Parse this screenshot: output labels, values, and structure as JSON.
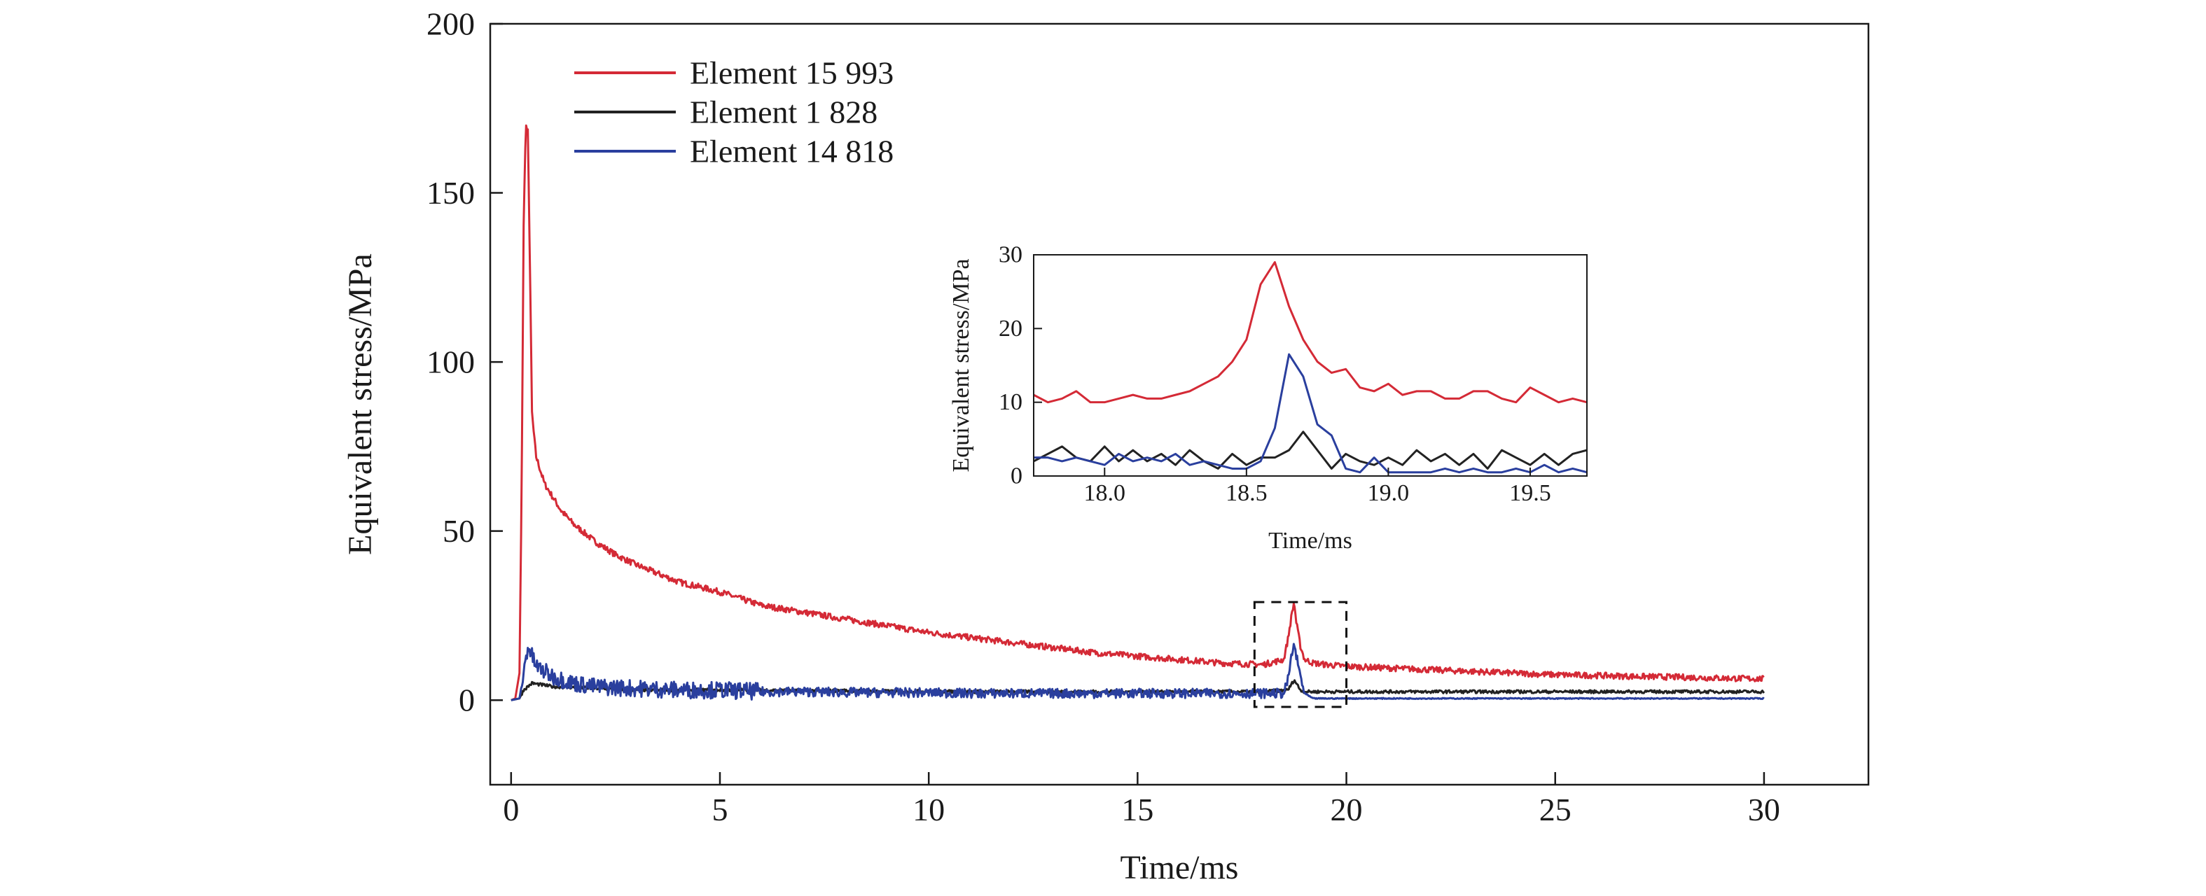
{
  "chart_data": [
    {
      "type": "line",
      "xlabel": "Time/ms",
      "ylabel": "Equivalent stress/MPa",
      "xlim": [
        -0.5,
        32.5
      ],
      "ylim": [
        -25,
        200
      ],
      "xticks": [
        0,
        5,
        10,
        15,
        20,
        25,
        30
      ],
      "yticks": [
        0,
        50,
        100,
        150,
        200
      ],
      "xtick_labels": [
        "0",
        "5",
        "10",
        "15",
        "20",
        "25",
        "30"
      ],
      "ytick_labels": [
        "0",
        "50",
        "100",
        "150",
        "200"
      ],
      "grid": false,
      "legend_position": "top-left",
      "annotation": "dashed box around 17.8–20.0 ms, −2 to 29 MPa",
      "series": [
        {
          "name": "Element 15 993",
          "color": "#d42a36",
          "x": [
            0,
            0.1,
            0.2,
            0.25,
            0.3,
            0.35,
            0.4,
            0.45,
            0.5,
            0.55,
            0.6,
            0.7,
            0.8,
            1.0,
            1.2,
            1.5,
            2.0,
            2.5,
            3.0,
            3.5,
            4.0,
            5.0,
            6.0,
            7.0,
            8.0,
            9.0,
            10.0,
            11.0,
            12.0,
            13.0,
            14.0,
            15.0,
            16.0,
            17.0,
            18.0,
            18.5,
            18.6,
            18.7,
            18.75,
            18.8,
            18.9,
            19.0,
            19.2,
            19.5,
            20.0,
            21.0,
            22.0,
            23.0,
            24.0,
            25.0,
            26.0,
            27.0,
            28.0,
            29.0,
            30.0
          ],
          "values": [
            0,
            0.5,
            8,
            60,
            140,
            170,
            168,
            130,
            85,
            78,
            72,
            68,
            64,
            60,
            56,
            52,
            47,
            43,
            40,
            37.5,
            35,
            32,
            28,
            26,
            24,
            22,
            20,
            18.5,
            17,
            15.5,
            14,
            13,
            12,
            11,
            10.5,
            12,
            18,
            26,
            29,
            23,
            16,
            12,
            11,
            10.5,
            10,
            9.5,
            9,
            8.5,
            8,
            7.5,
            7.3,
            7,
            6.8,
            6.5,
            6.3
          ]
        },
        {
          "name": "Element 1 828",
          "color": "#222222",
          "x": [
            0,
            0.2,
            0.3,
            0.5,
            1.0,
            2.0,
            3.0,
            4.0,
            5.0,
            6.0,
            7.0,
            8.0,
            9.0,
            10.0,
            11.0,
            12.0,
            13.0,
            14.0,
            15.0,
            16.0,
            17.0,
            18.0,
            18.6,
            18.75,
            18.9,
            19.0,
            20.0,
            21.0,
            22.0,
            23.0,
            24.0,
            25.0,
            26.0,
            27.0,
            28.0,
            29.0,
            30.0
          ],
          "values": [
            0,
            0.5,
            3,
            5,
            4,
            3.5,
            3,
            3,
            3,
            3,
            2.8,
            2.8,
            2.6,
            2.6,
            2.5,
            2.5,
            2.5,
            2.5,
            2.5,
            2.5,
            2.5,
            2.5,
            3,
            6,
            3,
            2.5,
            2.5,
            2.5,
            2.5,
            2.5,
            2.5,
            2.5,
            2.5,
            2.5,
            2.5,
            2.5,
            2.5
          ]
        },
        {
          "name": "Element 14 818",
          "color": "#2a3f9e",
          "x": [
            0,
            0.2,
            0.3,
            0.4,
            0.6,
            1.0,
            1.5,
            2.0,
            3.0,
            4.0,
            5.0,
            6.0,
            7.0,
            8.0,
            9.0,
            10.0,
            11.0,
            12.0,
            13.0,
            14.0,
            15.0,
            16.0,
            17.0,
            18.0,
            18.5,
            18.6,
            18.7,
            18.75,
            18.8,
            18.9,
            19.0,
            19.2,
            20.0,
            21.0,
            22.0,
            23.0,
            24.0,
            25.0,
            26.0,
            27.0,
            28.0,
            29.0,
            30.0
          ],
          "values": [
            0,
            0.5,
            8,
            16,
            10,
            7,
            5,
            4,
            3.5,
            3,
            3,
            2.5,
            2.5,
            2.3,
            2.2,
            2.2,
            2,
            2,
            2,
            2,
            2,
            2,
            2,
            2,
            2,
            6,
            14,
            16.5,
            13,
            7,
            2,
            0.5,
            0.5,
            0.5,
            0.5,
            0.5,
            0.5,
            0.5,
            0.5,
            0.5,
            0.5,
            0.5,
            0.5
          ]
        }
      ]
    },
    {
      "type": "line",
      "xlabel": "Time/ms",
      "ylabel": "Equivalent stress/MPa",
      "xlim": [
        17.75,
        19.7
      ],
      "ylim": [
        0,
        30
      ],
      "xticks": [
        18.0,
        18.5,
        19.0,
        19.5
      ],
      "yticks": [
        0,
        10,
        20,
        30
      ],
      "xtick_labels": [
        "18.0",
        "18.5",
        "19.0",
        "19.5"
      ],
      "ytick_labels": [
        "0",
        "10",
        "20",
        "30"
      ],
      "grid": false,
      "series": [
        {
          "color": "#d42a36",
          "x": [
            17.75,
            17.8,
            17.85,
            17.9,
            17.95,
            18.0,
            18.05,
            18.1,
            18.15,
            18.2,
            18.25,
            18.3,
            18.35,
            18.4,
            18.45,
            18.5,
            18.55,
            18.6,
            18.65,
            18.7,
            18.75,
            18.8,
            18.85,
            18.9,
            18.95,
            19.0,
            19.05,
            19.1,
            19.15,
            19.2,
            19.25,
            19.3,
            19.35,
            19.4,
            19.45,
            19.5,
            19.55,
            19.6,
            19.65,
            19.7
          ],
          "values": [
            11,
            10,
            10.5,
            11.5,
            10,
            10,
            10.5,
            11,
            10.5,
            10.5,
            11,
            11.5,
            12.5,
            13.5,
            15.5,
            18.5,
            26,
            29,
            23,
            18.5,
            15.5,
            14,
            14.5,
            12,
            11.5,
            12.5,
            11,
            11.5,
            11.5,
            10.5,
            10.5,
            11.5,
            11.5,
            10.5,
            10,
            12,
            11,
            10,
            10.5,
            10
          ]
        },
        {
          "color": "#222222",
          "x": [
            17.75,
            17.8,
            17.85,
            17.9,
            17.95,
            18.0,
            18.05,
            18.1,
            18.15,
            18.2,
            18.25,
            18.3,
            18.35,
            18.4,
            18.45,
            18.5,
            18.55,
            18.6,
            18.65,
            18.7,
            18.75,
            18.8,
            18.85,
            18.9,
            18.95,
            19.0,
            19.05,
            19.1,
            19.15,
            19.2,
            19.25,
            19.3,
            19.35,
            19.4,
            19.45,
            19.5,
            19.55,
            19.6,
            19.65,
            19.7
          ],
          "values": [
            2,
            3,
            4,
            2.5,
            2,
            4,
            2,
            3.5,
            2,
            3,
            1.5,
            3.5,
            2,
            1,
            3,
            1.5,
            2.5,
            2.5,
            3.5,
            6,
            3.5,
            1,
            3,
            2,
            1.5,
            2.5,
            1.5,
            3.5,
            2,
            3,
            1.5,
            3,
            1,
            3.5,
            2.5,
            1.5,
            3,
            1.5,
            3,
            3.5
          ]
        },
        {
          "color": "#2a3f9e",
          "x": [
            17.75,
            17.8,
            17.85,
            17.9,
            17.95,
            18.0,
            18.05,
            18.1,
            18.15,
            18.2,
            18.25,
            18.3,
            18.35,
            18.4,
            18.45,
            18.5,
            18.55,
            18.6,
            18.65,
            18.7,
            18.75,
            18.8,
            18.85,
            18.9,
            18.95,
            19.0,
            19.05,
            19.1,
            19.15,
            19.2,
            19.25,
            19.3,
            19.35,
            19.4,
            19.45,
            19.5,
            19.55,
            19.6,
            19.65,
            19.7
          ],
          "values": [
            2.5,
            2.5,
            2,
            2.5,
            2,
            1.5,
            3,
            2,
            2.5,
            2,
            3,
            1.5,
            2,
            1.5,
            1,
            1,
            2,
            6.5,
            16.5,
            13.5,
            7,
            5.5,
            1,
            0.5,
            2.5,
            0.5,
            0.5,
            0.5,
            0.5,
            1,
            0.5,
            1,
            0.5,
            0.5,
            1,
            0.5,
            1.5,
            0.5,
            1,
            0.5
          ]
        }
      ]
    }
  ]
}
